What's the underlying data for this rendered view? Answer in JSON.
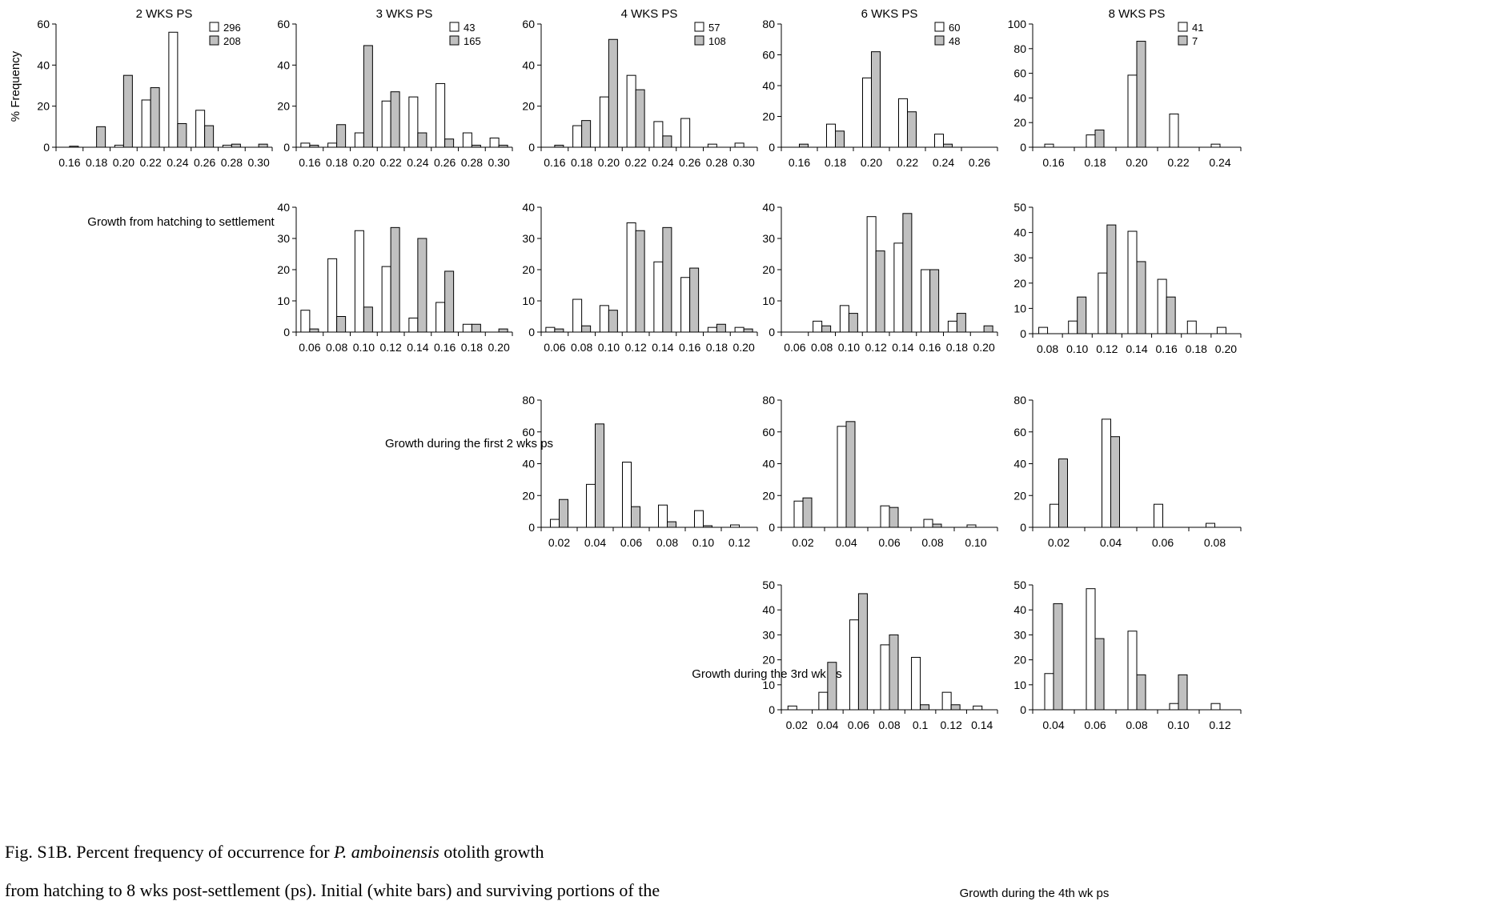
{
  "figure": {
    "ylabel": "% Frequency",
    "row_labels": [
      "Growth from hatching to settlement",
      "Growth during the first 2 wks ps",
      "Growth during the 3rd wk ps",
      "Growth during the 4th wk ps"
    ],
    "caption": {
      "line1_pre": "Fig. S1B. Percent frequency of occurrence for ",
      "line1_italic": "P. amboinensis",
      "line1_post": " otolith growth",
      "line2": "from hatching to 8 wks post-settlement (ps). Initial (white bars) and surviving portions of the"
    },
    "colors": {
      "initial": "#ffffff",
      "survivors": "#c0c0c0",
      "stroke": "#000000"
    }
  },
  "chart_data": [
    {
      "type": "bar",
      "panel": "2-wks-hatch",
      "title": "2 WKS PS",
      "legend": [
        "296",
        "208"
      ],
      "categories": [
        "0.16",
        "0.18",
        "0.20",
        "0.22",
        "0.24",
        "0.26",
        "0.28",
        "0.30"
      ],
      "ylim": [
        0,
        60
      ],
      "yticks": [
        0,
        20,
        40,
        60
      ],
      "series": [
        {
          "values": [
            0,
            0,
            1,
            23,
            56,
            18,
            1,
            0
          ]
        },
        {
          "values": [
            0.5,
            10,
            35,
            29,
            11.5,
            10.5,
            1.5,
            1.5
          ]
        }
      ]
    },
    {
      "type": "bar",
      "panel": "3-wks-hatch",
      "title": "3 WKS PS",
      "legend": [
        "43",
        "165"
      ],
      "categories": [
        "0.16",
        "0.18",
        "0.20",
        "0.22",
        "0.24",
        "0.26",
        "0.28",
        "0.30"
      ],
      "ylim": [
        0,
        60
      ],
      "yticks": [
        0,
        20,
        40,
        60
      ],
      "series": [
        {
          "values": [
            2,
            2,
            7,
            22.5,
            24.5,
            31,
            7,
            4.5
          ]
        },
        {
          "values": [
            1,
            11,
            49.5,
            27,
            7,
            4,
            1,
            1
          ]
        }
      ]
    },
    {
      "type": "bar",
      "panel": "4-wks-hatch",
      "title": "4 WKS PS",
      "legend": [
        "57",
        "108"
      ],
      "categories": [
        "0.16",
        "0.18",
        "0.20",
        "0.22",
        "0.24",
        "0.26",
        "0.28",
        "0.30"
      ],
      "ylim": [
        0,
        60
      ],
      "yticks": [
        0,
        20,
        40,
        60
      ],
      "series": [
        {
          "values": [
            0,
            10.5,
            24.5,
            35,
            12.5,
            14,
            1.5,
            2
          ]
        },
        {
          "values": [
            1,
            13,
            52.5,
            28,
            5.5,
            0,
            0,
            0
          ]
        }
      ]
    },
    {
      "type": "bar",
      "panel": "6-wks-hatch",
      "title": "6 WKS PS",
      "legend": [
        "60",
        "48"
      ],
      "categories": [
        "0.16",
        "0.18",
        "0.20",
        "0.22",
        "0.24",
        "0.26"
      ],
      "ylim": [
        0,
        80
      ],
      "yticks": [
        0,
        20,
        40,
        60,
        80
      ],
      "series": [
        {
          "values": [
            0,
            15,
            45,
            31.5,
            8.5,
            0
          ]
        },
        {
          "values": [
            2,
            10.5,
            62,
            23,
            2,
            0
          ]
        }
      ]
    },
    {
      "type": "bar",
      "panel": "8-wks-hatch",
      "title": "8 WKS PS",
      "legend": [
        "41",
        "7"
      ],
      "categories": [
        "0.16",
        "0.18",
        "0.20",
        "0.22",
        "0.24"
      ],
      "ylim": [
        0,
        100
      ],
      "yticks": [
        0,
        20,
        40,
        60,
        80,
        100
      ],
      "series": [
        {
          "values": [
            2.5,
            10,
            58.5,
            27,
            2.5
          ]
        },
        {
          "values": [
            0,
            14,
            86,
            0,
            0
          ]
        }
      ]
    },
    {
      "type": "bar",
      "panel": "3-wks-first2",
      "categories": [
        "0.06",
        "0.08",
        "0.10",
        "0.12",
        "0.14",
        "0.16",
        "0.18",
        "0.20"
      ],
      "ylim": [
        0,
        40
      ],
      "yticks": [
        0,
        10,
        20,
        30,
        40
      ],
      "series": [
        {
          "values": [
            7,
            23.5,
            32.5,
            21,
            4.5,
            9.5,
            2.5,
            0
          ]
        },
        {
          "values": [
            1,
            5,
            8,
            33.5,
            30,
            19.5,
            2.5,
            1
          ]
        }
      ]
    },
    {
      "type": "bar",
      "panel": "4-wks-first2",
      "categories": [
        "0.06",
        "0.08",
        "0.10",
        "0.12",
        "0.14",
        "0.16",
        "0.18",
        "0.20"
      ],
      "ylim": [
        0,
        40
      ],
      "yticks": [
        0,
        10,
        20,
        30,
        40
      ],
      "series": [
        {
          "values": [
            1.5,
            10.5,
            8.5,
            35,
            22.5,
            17.5,
            1.5,
            1.5
          ]
        },
        {
          "values": [
            1,
            2,
            7,
            32.5,
            33.5,
            20.5,
            2.5,
            1
          ]
        }
      ]
    },
    {
      "type": "bar",
      "panel": "6-wks-first2",
      "categories": [
        "0.06",
        "0.08",
        "0.10",
        "0.12",
        "0.14",
        "0.16",
        "0.18",
        "0.20"
      ],
      "ylim": [
        0,
        40
      ],
      "yticks": [
        0,
        10,
        20,
        30,
        40
      ],
      "series": [
        {
          "values": [
            0,
            3.5,
            8.5,
            37,
            28.5,
            20,
            3.5,
            0
          ]
        },
        {
          "values": [
            0,
            2,
            6,
            26,
            38,
            20,
            6,
            2
          ]
        }
      ]
    },
    {
      "type": "bar",
      "panel": "8-wks-first2",
      "categories": [
        "0.08",
        "0.10",
        "0.12",
        "0.14",
        "0.16",
        "0.18",
        "0.20"
      ],
      "ylim": [
        0,
        50
      ],
      "yticks": [
        0,
        10,
        20,
        30,
        40,
        50
      ],
      "series": [
        {
          "values": [
            2.5,
            5,
            24,
            40.5,
            21.5,
            5,
            2.5
          ]
        },
        {
          "values": [
            0,
            14.5,
            43,
            28.5,
            14.5,
            0,
            0
          ]
        }
      ]
    },
    {
      "type": "bar",
      "panel": "4-wks-3rd",
      "categories": [
        "0.02",
        "0.04",
        "0.06",
        "0.08",
        "0.10",
        "0.12"
      ],
      "ylim": [
        0,
        80
      ],
      "yticks": [
        0,
        20,
        40,
        60,
        80
      ],
      "series": [
        {
          "values": [
            5,
            27,
            41,
            14,
            10.5,
            1.5
          ]
        },
        {
          "values": [
            17.5,
            65,
            13,
            3.5,
            1,
            0
          ]
        }
      ]
    },
    {
      "type": "bar",
      "panel": "6-wks-3rd",
      "categories": [
        "0.02",
        "0.04",
        "0.06",
        "0.08",
        "0.10"
      ],
      "ylim": [
        0,
        80
      ],
      "yticks": [
        0,
        20,
        40,
        60,
        80
      ],
      "series": [
        {
          "values": [
            16.5,
            63.5,
            13.5,
            5,
            1.5
          ]
        },
        {
          "values": [
            18.5,
            66.5,
            12.5,
            2,
            0
          ]
        }
      ]
    },
    {
      "type": "bar",
      "panel": "8-wks-3rd",
      "categories": [
        "0.02",
        "0.04",
        "0.06",
        "0.08"
      ],
      "ylim": [
        0,
        80
      ],
      "yticks": [
        0,
        20,
        40,
        60,
        80
      ],
      "series": [
        {
          "values": [
            14.5,
            68,
            14.5,
            2.5
          ]
        },
        {
          "values": [
            43,
            57,
            0,
            0
          ]
        }
      ]
    },
    {
      "type": "bar",
      "panel": "6-wks-4th",
      "categories": [
        "0.02",
        "0.04",
        "0.06",
        "0.08",
        "0.1",
        "0.12",
        "0.14"
      ],
      "ylim": [
        0,
        50
      ],
      "yticks": [
        0,
        10,
        20,
        30,
        40,
        50
      ],
      "series": [
        {
          "values": [
            1.5,
            7,
            36,
            26,
            21,
            7,
            1.5
          ]
        },
        {
          "values": [
            0,
            19,
            46.5,
            30,
            2,
            2,
            0
          ]
        }
      ]
    },
    {
      "type": "bar",
      "panel": "8-wks-4th",
      "categories": [
        "0.04",
        "0.06",
        "0.08",
        "0.10",
        "0.12"
      ],
      "ylim": [
        0,
        50
      ],
      "yticks": [
        0,
        10,
        20,
        30,
        40,
        50
      ],
      "series": [
        {
          "values": [
            14.5,
            48.5,
            31.5,
            2.5,
            2.5
          ]
        },
        {
          "values": [
            42.5,
            28.5,
            14,
            14,
            0
          ]
        }
      ]
    }
  ]
}
